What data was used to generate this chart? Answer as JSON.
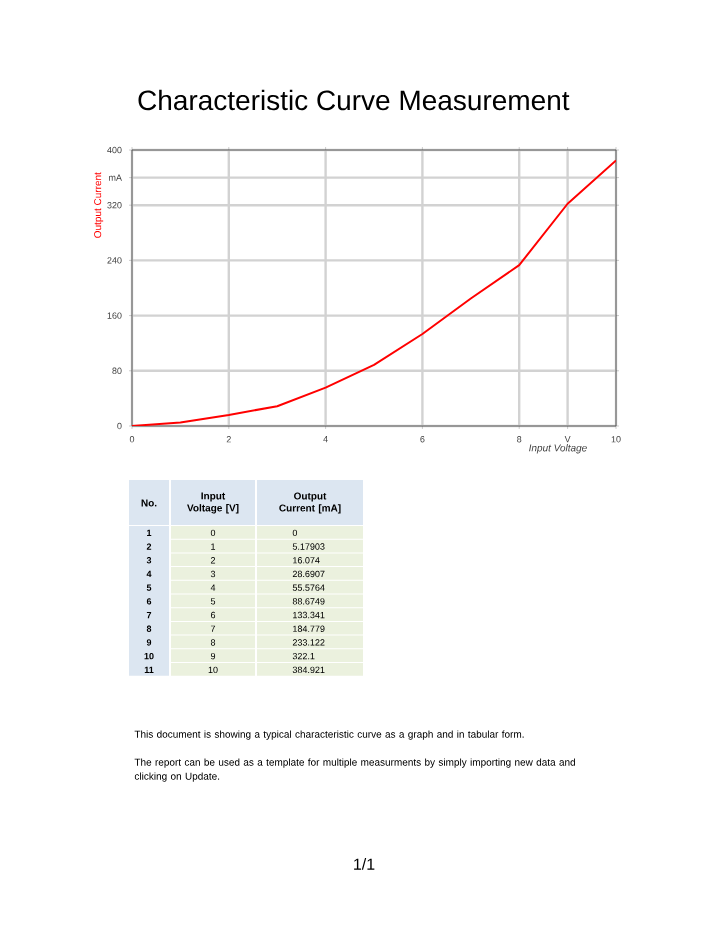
{
  "chart_data": {
    "type": "line",
    "title": "Characteristic Curve Measurement",
    "xlabel": "Input Voltage",
    "ylabel": "Output Current",
    "x": [
      0,
      1,
      2,
      3,
      4,
      5,
      6,
      7,
      8,
      9,
      10
    ],
    "values": [
      0,
      5.17903,
      16.074,
      28.6907,
      55.5764,
      88.6749,
      133.341,
      184.779,
      233.122,
      322.1,
      384.921
    ],
    "color": "#ff0000",
    "xlim": [
      0,
      10
    ],
    "ylim": [
      0,
      400
    ],
    "xticks": [
      0,
      2,
      4,
      6,
      8,
      {
        "value": 9,
        "label": "V"
      },
      10
    ],
    "yticks": [
      0,
      80,
      160,
      240,
      320,
      {
        "value": 360,
        "label": "mA"
      },
      400
    ],
    "grid": true,
    "annotations": [
      "No.",
      "Input Voltage [V]",
      "Output Current [mA]",
      "1",
      "0",
      "0",
      "2",
      "1",
      "5.17903",
      "3",
      "2",
      "16.074",
      "4",
      "3",
      "28.6907",
      "5",
      "4",
      "55.5764",
      "6",
      "5",
      "88.6749",
      "7",
      "6",
      "133.341",
      "8",
      "7",
      "184.779",
      "9",
      "8",
      "233.122",
      "10",
      "9",
      "322.1",
      "11",
      "10",
      "384.921",
      "This document is showing a typical characteristic curve as a graph and in tabular form.",
      "The report can be used as a template for multiple measurments by simply importing new data and clicking on Update.",
      "1/1"
    ]
  }
}
